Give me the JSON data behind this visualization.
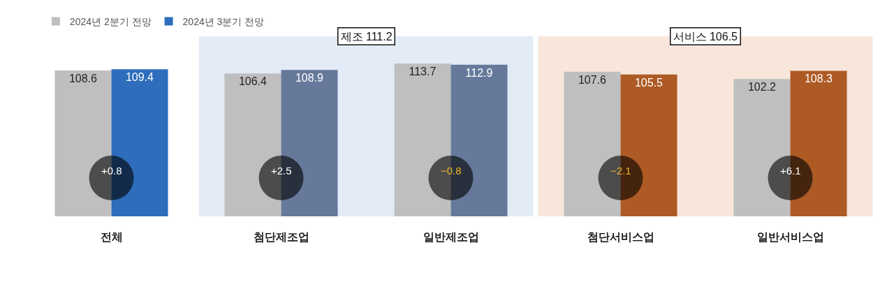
{
  "chart_data": {
    "type": "bar",
    "categories": [
      "전체",
      "첨단제조업",
      "일반제조업",
      "첨단서비스업",
      "일반서비스업"
    ],
    "series": [
      {
        "name": "2024년 2분기 전망",
        "color": "#bfbfbf",
        "values": [
          108.6,
          106.4,
          113.7,
          107.6,
          102.2
        ]
      },
      {
        "name": "2024년 3분기 전망",
        "colors": [
          "#2e6dbb",
          "#66799a",
          "#66799a",
          "#ad5a25",
          "#ad5a25"
        ],
        "values": [
          109.4,
          108.9,
          112.9,
          105.5,
          108.3
        ]
      }
    ],
    "data_labels": true,
    "ylim": [
      0,
      134
    ],
    "tick_labels": "x",
    "legend": "top left",
    "bands": [
      {
        "axis": "x",
        "from": "첨단제조업",
        "to": "일반제조업",
        "label": "제조 111.2",
        "color": "#e3ebf6"
      },
      {
        "axis": "x",
        "from": "첨단서비스업",
        "to": "일반서비스업",
        "label": "서비스 106.5",
        "color": "#f8e6db"
      }
    ],
    "annotations": [
      {
        "text": "+0.8",
        "x": "전체"
      },
      {
        "text": "+2.5",
        "x": "첨단제조업"
      },
      {
        "text": "−0.8",
        "x": "일반제조업"
      },
      {
        "text": "−2.1",
        "x": "첨단서비스업"
      },
      {
        "text": "+6.1",
        "x": "일반서비스업"
      }
    ]
  }
}
